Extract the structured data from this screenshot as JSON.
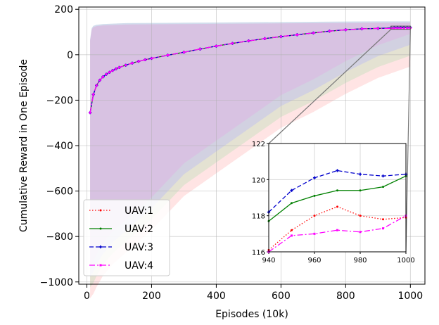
{
  "chart_data": {
    "type": "line",
    "xlabel": "Episodes (10k)",
    "ylabel": "Cumulative Reward in One Episode",
    "xlim": [
      -25,
      1045
    ],
    "ylim": [
      -1010,
      210
    ],
    "xticks": [
      0,
      200,
      400,
      600,
      800,
      1000
    ],
    "yticks": [
      -1000,
      -800,
      -600,
      -400,
      -200,
      0,
      200
    ],
    "grid": true,
    "legend_position": "lower-left",
    "x": [
      10,
      20,
      30,
      40,
      50,
      60,
      70,
      80,
      90,
      100,
      120,
      140,
      160,
      180,
      200,
      250,
      300,
      350,
      400,
      450,
      500,
      550,
      600,
      650,
      700,
      750,
      800,
      850,
      900,
      940,
      950,
      960,
      970,
      980,
      990,
      1000
    ],
    "series": [
      {
        "name": "UAV:1",
        "color": "#ff0000",
        "dash": "1.5,2.5",
        "marker": "circle",
        "values": [
          -255,
          -175,
          -135,
          -112,
          -97,
          -86,
          -77,
          -69,
          -62,
          -56,
          -46,
          -37,
          -29,
          -22,
          -16,
          -2,
          11,
          25,
          38,
          50,
          61,
          71,
          80,
          88,
          96,
          104,
          110,
          114,
          116,
          116.1,
          117.2,
          118.0,
          118.5,
          118.0,
          117.8,
          117.9
        ]
      },
      {
        "name": "UAV:2",
        "color": "#008000",
        "dash": "",
        "marker": "circle",
        "values": [
          -255,
          -175,
          -135,
          -112,
          -97,
          -86,
          -77,
          -69,
          -62,
          -56,
          -46,
          -37,
          -29,
          -22,
          -16,
          -2,
          11,
          25,
          38,
          50,
          61,
          71,
          80,
          88,
          96,
          104,
          110,
          114,
          116,
          117.7,
          118.7,
          119.1,
          119.4,
          119.4,
          119.6,
          120.2
        ]
      },
      {
        "name": "UAV:3",
        "color": "#0000cc",
        "dash": "6,3",
        "marker": "star",
        "values": [
          -255,
          -175,
          -135,
          -112,
          -97,
          -86,
          -77,
          -69,
          -62,
          -56,
          -46,
          -37,
          -29,
          -22,
          -16,
          -2,
          11,
          25,
          38,
          50,
          61,
          71,
          80,
          88,
          96,
          104,
          110,
          114,
          116,
          118.2,
          119.4,
          120.1,
          120.5,
          120.3,
          120.2,
          120.3
        ]
      },
      {
        "name": "UAV:4",
        "color": "#ff00ff",
        "dash": "8,3,2,3",
        "marker": "square",
        "values": [
          -255,
          -175,
          -135,
          -112,
          -97,
          -86,
          -77,
          -69,
          -62,
          -56,
          -46,
          -37,
          -29,
          -22,
          -16,
          -2,
          11,
          25,
          38,
          50,
          61,
          71,
          80,
          88,
          96,
          104,
          110,
          114,
          116,
          116.0,
          116.9,
          117.0,
          117.2,
          117.1,
          117.3,
          118.0
        ]
      }
    ],
    "bands": {
      "x": [
        10,
        15,
        20,
        30,
        50,
        80,
        120,
        200,
        300,
        400,
        500,
        600,
        700,
        800,
        900,
        1000
      ],
      "upper": [
        70,
        120,
        130,
        135,
        138,
        140,
        142,
        143,
        144,
        145,
        146,
        147,
        148,
        149,
        150,
        150
      ],
      "lower": [
        -1000,
        -990,
        -980,
        -950,
        -900,
        -850,
        -800,
        -700,
        -550,
        -450,
        -350,
        -250,
        -180,
        -100,
        -30,
        20
      ]
    },
    "inset": {
      "xlim": [
        940,
        1000
      ],
      "ylim": [
        116,
        122
      ],
      "xticks": [
        940,
        960,
        980,
        1000
      ],
      "yticks": [
        116,
        118,
        120,
        122
      ]
    }
  }
}
